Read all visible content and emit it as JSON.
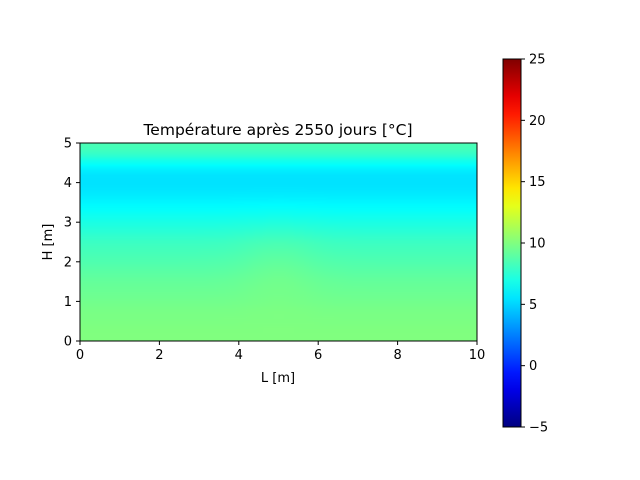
{
  "chart_data": {
    "type": "heatmap",
    "title": "Température après 2550 jours [°C]",
    "xlabel": "L [m]",
    "ylabel": "H [m]",
    "xlim": [
      0,
      10
    ],
    "ylim": [
      0,
      5
    ],
    "x_ticks": [
      0,
      2,
      4,
      6,
      8,
      10
    ],
    "y_ticks": [
      0,
      1,
      2,
      3,
      4,
      5
    ],
    "grid": false,
    "colormap": "jet",
    "colorbar": {
      "vmin": -5,
      "vmax": 25,
      "ticks": [
        -5,
        0,
        5,
        10,
        15,
        20,
        25
      ]
    },
    "profile_depth_m": [
      0.0,
      0.25,
      0.5,
      0.75,
      1.0,
      1.25,
      1.5,
      1.75,
      2.0,
      2.25,
      2.5,
      2.75,
      3.0,
      3.25,
      3.5,
      3.75,
      4.0,
      4.25,
      4.5,
      4.75,
      5.0
    ],
    "profile_temperature_c": [
      10.0,
      10.0,
      9.9,
      9.8,
      9.6,
      9.4,
      9.2,
      8.9,
      8.6,
      8.3,
      8.0,
      7.5,
      7.0,
      6.5,
      6.0,
      5.6,
      5.4,
      5.5,
      6.5,
      8.0,
      8.5
    ],
    "anomaly": {
      "center_x_m": 5.0,
      "center_y_m": 2.0,
      "radius_m": 1.0,
      "delta_c": 0.5
    }
  }
}
